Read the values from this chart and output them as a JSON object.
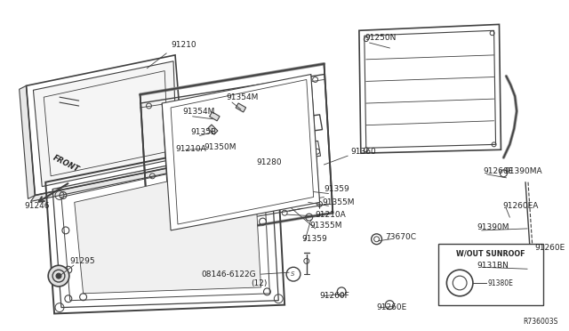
{
  "bg_color": "#ffffff",
  "line_color": "#404040",
  "text_color": "#222222",
  "ref_number": "R736003S",
  "box_label": "W/OUT SUNROOF",
  "box_sub": "91380E",
  "figsize": [
    6.4,
    3.72
  ],
  "dpi": 100
}
